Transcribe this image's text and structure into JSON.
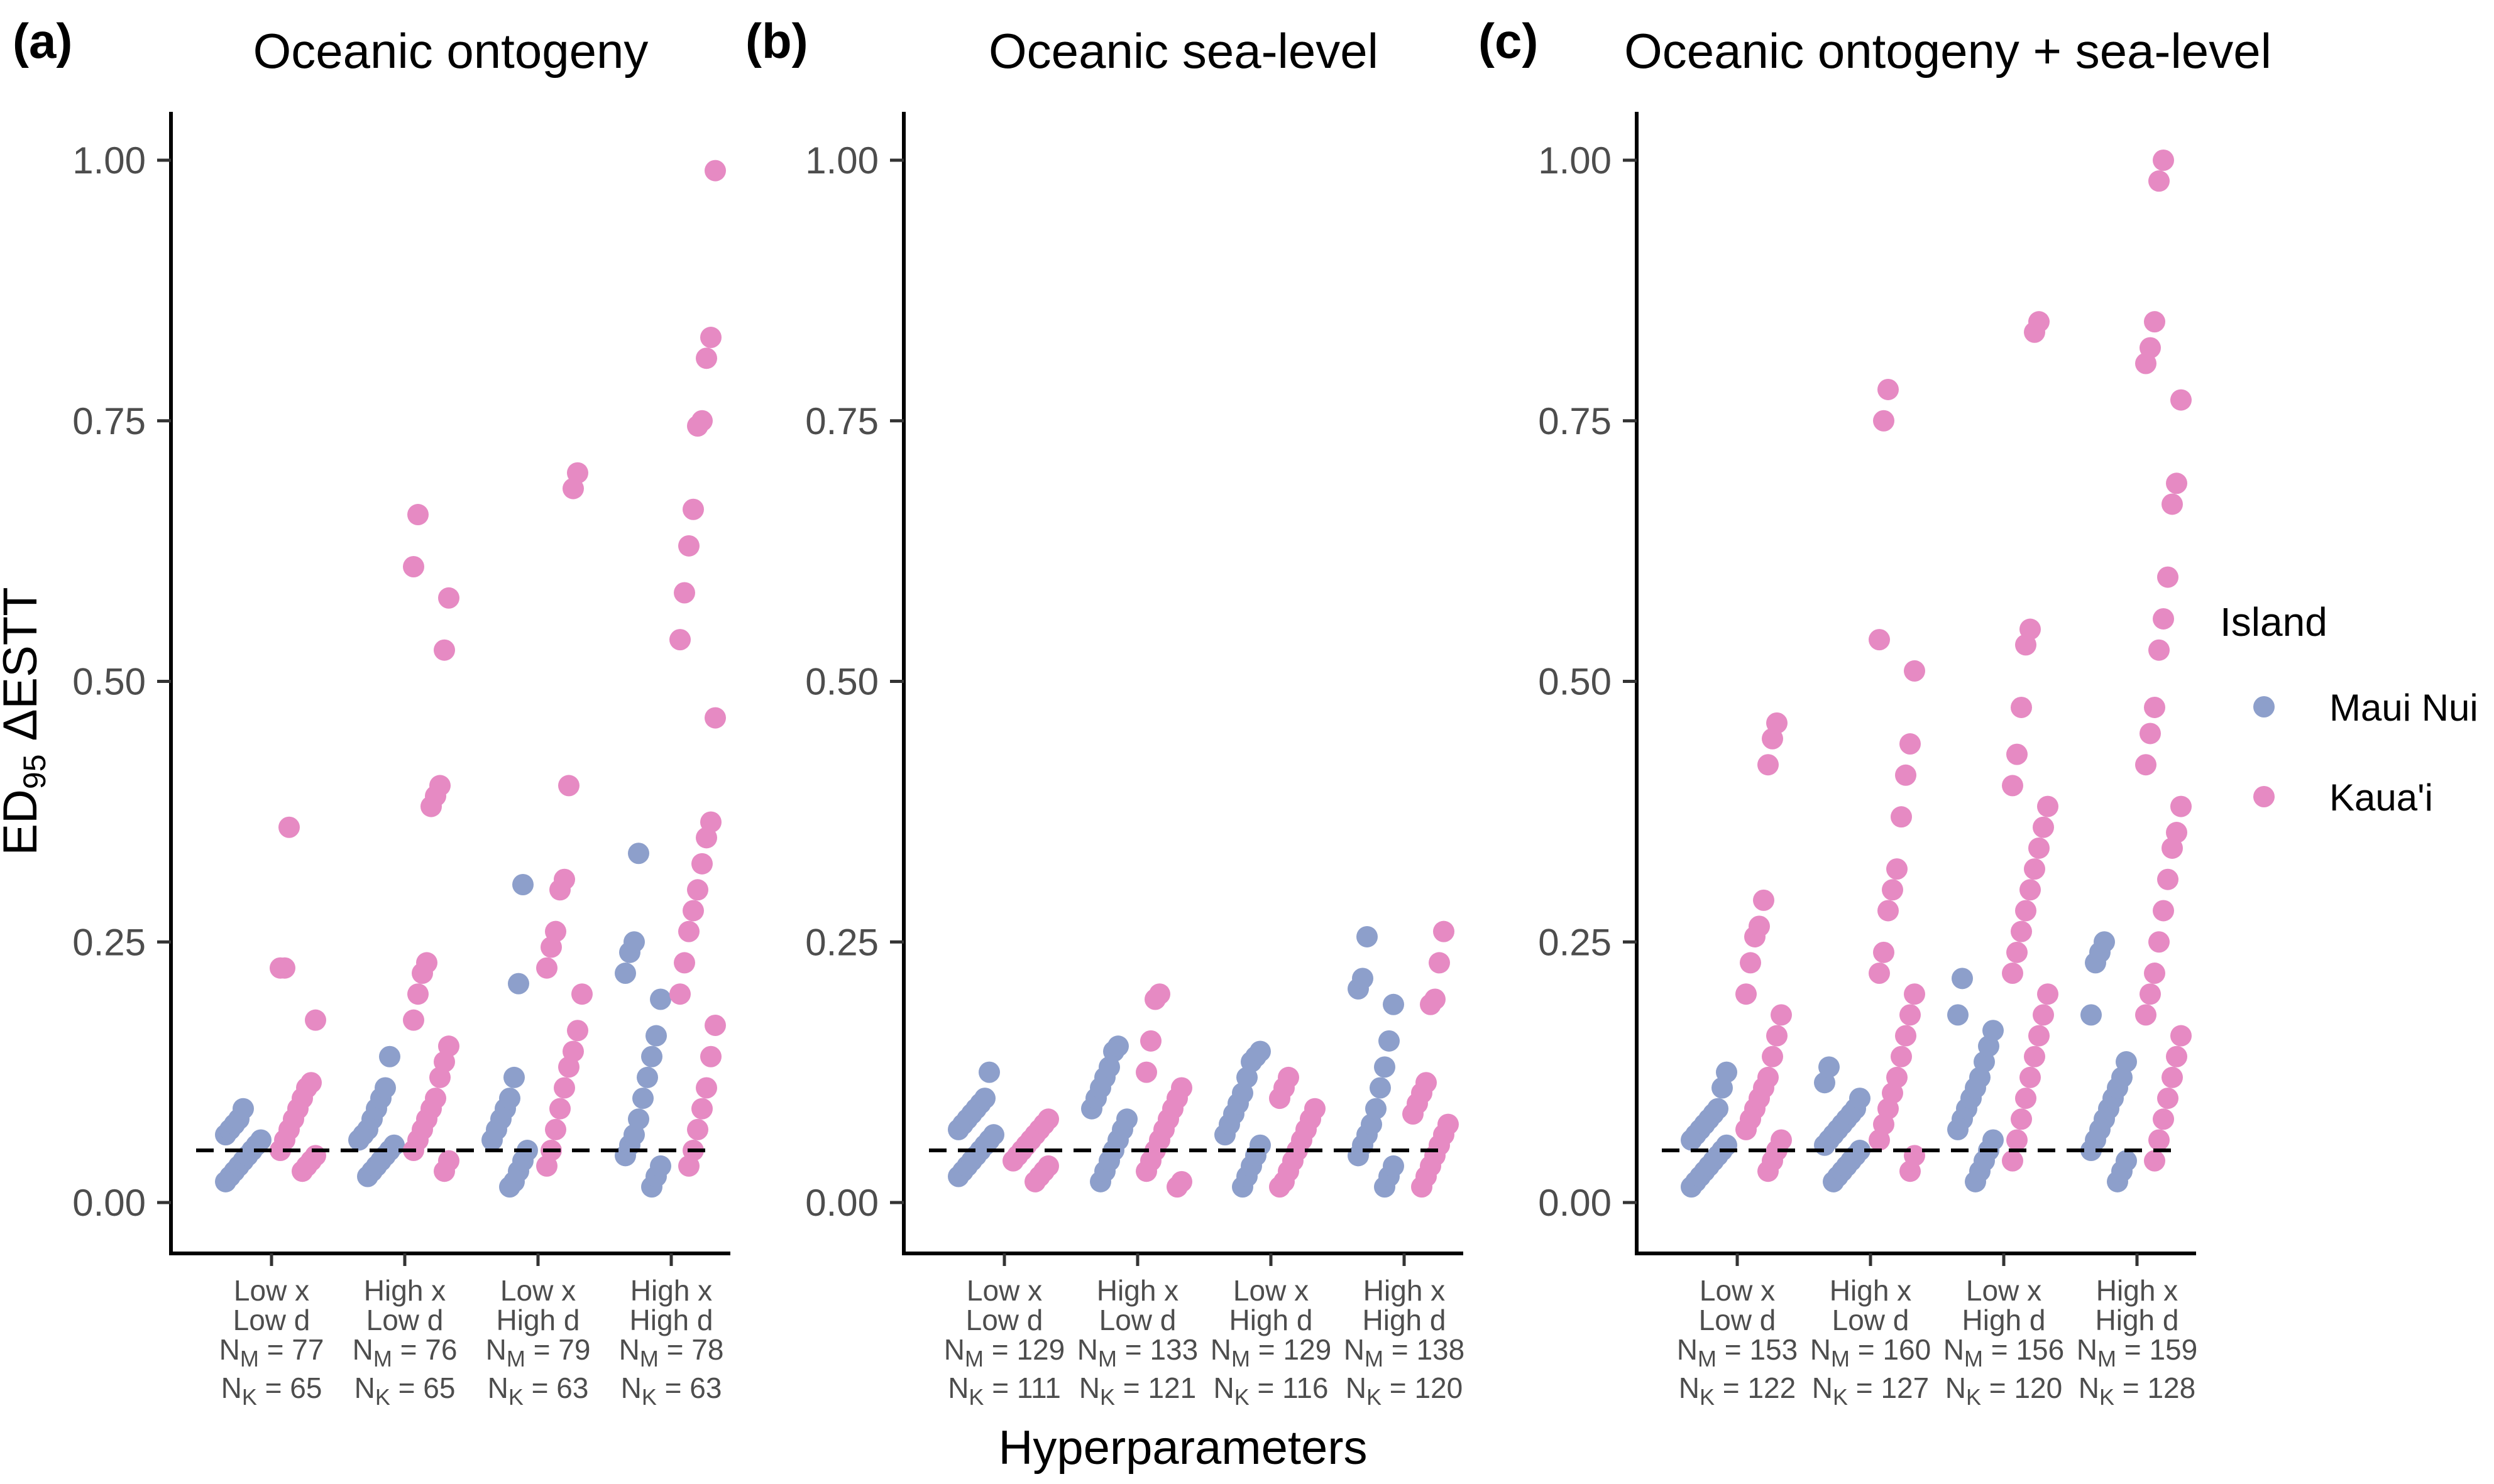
{
  "figure": {
    "xlabel": "Hyperparameters",
    "ylabel": "ED",
    "ylabel_sub": "95",
    "ylabel_rest": " ΔESTT",
    "reference_line": 0.05,
    "legend": {
      "title": "Island",
      "items": [
        {
          "name": "Maui Nui",
          "color": "#8d9fcb"
        },
        {
          "name": "Kaua'i",
          "color": "#e68ac3"
        }
      ]
    }
  },
  "chart_data": [
    {
      "type": "scatter",
      "panel_label": "(a)",
      "title": "Oceanic ontogeny",
      "ylim": [
        0,
        1
      ],
      "yticks": [
        "0.00",
        "0.25",
        "0.50",
        "0.75",
        "1.00"
      ],
      "categories": [
        {
          "line1": "Low x",
          "line2": "Low d",
          "nm_label": "N",
          "nm_sub": "M",
          "nm_val": " = 77",
          "nk_label": "N",
          "nk_sub": "K",
          "nk_val": " = 65"
        },
        {
          "line1": "High x",
          "line2": "Low d",
          "nm_label": "N",
          "nm_sub": "M",
          "nm_val": " = 76",
          "nk_label": "N",
          "nk_sub": "K",
          "nk_val": " = 65"
        },
        {
          "line1": "Low x",
          "line2": "High d",
          "nm_label": "N",
          "nm_sub": "M",
          "nm_val": " = 79",
          "nk_label": "N",
          "nk_sub": "K",
          "nk_val": " = 63"
        },
        {
          "line1": "High x",
          "line2": "High d",
          "nm_label": "N",
          "nm_sub": "M",
          "nm_val": " = 78",
          "nk_label": "N",
          "nk_sub": "K",
          "nk_val": " = 63"
        }
      ],
      "series": [
        {
          "name": "Maui Nui",
          "groups": [
            [
              0.02,
              0.025,
              0.03,
              0.035,
              0.04,
              0.045,
              0.05,
              0.055,
              0.06,
              0.065,
              0.07,
              0.075,
              0.08,
              0.09
            ],
            [
              0.025,
              0.03,
              0.035,
              0.04,
              0.045,
              0.05,
              0.055,
              0.06,
              0.065,
              0.07,
              0.08,
              0.09,
              0.1,
              0.11,
              0.14
            ],
            [
              0.015,
              0.02,
              0.03,
              0.04,
              0.05,
              0.06,
              0.07,
              0.08,
              0.09,
              0.1,
              0.12,
              0.21,
              0.305
            ],
            [
              0.015,
              0.025,
              0.035,
              0.045,
              0.055,
              0.065,
              0.08,
              0.1,
              0.12,
              0.14,
              0.16,
              0.195,
              0.22,
              0.24,
              0.25,
              0.335
            ]
          ]
        },
        {
          "name": "Kaua'i",
          "groups": [
            [
              0.03,
              0.035,
              0.04,
              0.045,
              0.05,
              0.06,
              0.07,
              0.08,
              0.09,
              0.1,
              0.11,
              0.115,
              0.175,
              0.225,
              0.225,
              0.36
            ],
            [
              0.03,
              0.04,
              0.05,
              0.06,
              0.07,
              0.08,
              0.09,
              0.1,
              0.12,
              0.135,
              0.15,
              0.175,
              0.2,
              0.22,
              0.23,
              0.38,
              0.39,
              0.4,
              0.53,
              0.58,
              0.61,
              0.66
            ],
            [
              0.035,
              0.05,
              0.07,
              0.09,
              0.11,
              0.13,
              0.145,
              0.165,
              0.2,
              0.225,
              0.245,
              0.26,
              0.3,
              0.31,
              0.4,
              0.685,
              0.7
            ],
            [
              0.035,
              0.05,
              0.07,
              0.09,
              0.11,
              0.14,
              0.17,
              0.2,
              0.23,
              0.26,
              0.28,
              0.3,
              0.325,
              0.35,
              0.365,
              0.465,
              0.54,
              0.585,
              0.63,
              0.665,
              0.745,
              0.75,
              0.81,
              0.83,
              0.99
            ]
          ]
        }
      ]
    },
    {
      "type": "scatter",
      "panel_label": "(b)",
      "title": "Oceanic sea-level",
      "ylim": [
        0,
        1
      ],
      "yticks": [
        "0.00",
        "0.25",
        "0.50",
        "0.75",
        "1.00"
      ],
      "categories": [
        {
          "line1": "Low x",
          "line2": "Low d",
          "nm_label": "N",
          "nm_sub": "M",
          "nm_val": " = 129",
          "nk_label": "N",
          "nk_sub": "K",
          "nk_val": " = 111"
        },
        {
          "line1": "High x",
          "line2": "Low d",
          "nm_label": "N",
          "nm_sub": "M",
          "nm_val": " = 133",
          "nk_label": "N",
          "nk_sub": "K",
          "nk_val": " = 121"
        },
        {
          "line1": "Low x",
          "line2": "High d",
          "nm_label": "N",
          "nm_sub": "M",
          "nm_val": " = 129",
          "nk_label": "N",
          "nk_sub": "K",
          "nk_val": " = 116"
        },
        {
          "line1": "High x",
          "line2": "High d",
          "nm_label": "N",
          "nm_sub": "M",
          "nm_val": " = 138",
          "nk_label": "N",
          "nk_sub": "K",
          "nk_val": " = 120"
        }
      ],
      "series": [
        {
          "name": "Maui Nui",
          "groups": [
            [
              0.025,
              0.03,
              0.035,
              0.04,
              0.045,
              0.05,
              0.055,
              0.06,
              0.065,
              0.07,
              0.075,
              0.08,
              0.085,
              0.09,
              0.095,
              0.1,
              0.125
            ],
            [
              0.02,
              0.03,
              0.04,
              0.05,
              0.06,
              0.07,
              0.08,
              0.09,
              0.1,
              0.11,
              0.12,
              0.13,
              0.145,
              0.15
            ],
            [
              0.015,
              0.025,
              0.035,
              0.045,
              0.055,
              0.065,
              0.075,
              0.085,
              0.095,
              0.105,
              0.12,
              0.135,
              0.14,
              0.145
            ],
            [
              0.015,
              0.025,
              0.035,
              0.045,
              0.055,
              0.065,
              0.075,
              0.09,
              0.11,
              0.13,
              0.155,
              0.19,
              0.205,
              0.215,
              0.255
            ]
          ]
        },
        {
          "name": "Kaua'i",
          "groups": [
            [
              0.02,
              0.025,
              0.03,
              0.035,
              0.04,
              0.045,
              0.05,
              0.055,
              0.06,
              0.065,
              0.07,
              0.075,
              0.08
            ],
            [
              0.015,
              0.02,
              0.03,
              0.04,
              0.05,
              0.06,
              0.07,
              0.08,
              0.09,
              0.1,
              0.11,
              0.125,
              0.155,
              0.195,
              0.2
            ],
            [
              0.015,
              0.02,
              0.03,
              0.04,
              0.05,
              0.06,
              0.07,
              0.08,
              0.09,
              0.1,
              0.11,
              0.12
            ],
            [
              0.015,
              0.025,
              0.035,
              0.045,
              0.055,
              0.065,
              0.075,
              0.085,
              0.095,
              0.105,
              0.115,
              0.19,
              0.195,
              0.23,
              0.26
            ]
          ]
        }
      ]
    },
    {
      "type": "scatter",
      "panel_label": "(c)",
      "title": "Oceanic ontogeny + sea-level",
      "ylim": [
        0,
        1
      ],
      "yticks": [
        "0.00",
        "0.25",
        "0.50",
        "0.75",
        "1.00"
      ],
      "categories": [
        {
          "line1": "Low x",
          "line2": "Low d",
          "nm_label": "N",
          "nm_sub": "M",
          "nm_val": " = 153",
          "nk_label": "N",
          "nk_sub": "K",
          "nk_val": " = 122"
        },
        {
          "line1": "High x",
          "line2": "Low d",
          "nm_label": "N",
          "nm_sub": "M",
          "nm_val": " = 160",
          "nk_label": "N",
          "nk_sub": "K",
          "nk_val": " = 127"
        },
        {
          "line1": "Low x",
          "line2": "High d",
          "nm_label": "N",
          "nm_sub": "M",
          "nm_val": " = 156",
          "nk_label": "N",
          "nk_sub": "K",
          "nk_val": " = 120"
        },
        {
          "line1": "High x",
          "line2": "High d",
          "nm_label": "N",
          "nm_sub": "M",
          "nm_val": " = 159",
          "nk_label": "N",
          "nk_sub": "K",
          "nk_val": " = 128"
        }
      ],
      "series": [
        {
          "name": "Maui Nui",
          "groups": [
            [
              0.015,
              0.02,
              0.025,
              0.03,
              0.035,
              0.04,
              0.045,
              0.05,
              0.055,
              0.06,
              0.065,
              0.07,
              0.075,
              0.08,
              0.085,
              0.09,
              0.11,
              0.125
            ],
            [
              0.02,
              0.025,
              0.03,
              0.035,
              0.04,
              0.045,
              0.05,
              0.055,
              0.06,
              0.065,
              0.07,
              0.075,
              0.08,
              0.085,
              0.09,
              0.1,
              0.115,
              0.13
            ],
            [
              0.02,
              0.03,
              0.04,
              0.05,
              0.06,
              0.07,
              0.08,
              0.09,
              0.1,
              0.11,
              0.12,
              0.135,
              0.15,
              0.165,
              0.18,
              0.215
            ],
            [
              0.02,
              0.03,
              0.04,
              0.05,
              0.06,
              0.07,
              0.08,
              0.09,
              0.1,
              0.11,
              0.12,
              0.135,
              0.18,
              0.23,
              0.24,
              0.25
            ]
          ]
        },
        {
          "name": "Kaua'i",
          "groups": [
            [
              0.03,
              0.04,
              0.05,
              0.06,
              0.07,
              0.08,
              0.09,
              0.1,
              0.11,
              0.12,
              0.14,
              0.16,
              0.18,
              0.2,
              0.23,
              0.255,
              0.265,
              0.29,
              0.42,
              0.445,
              0.46
            ],
            [
              0.03,
              0.045,
              0.06,
              0.075,
              0.09,
              0.105,
              0.12,
              0.14,
              0.16,
              0.18,
              0.2,
              0.22,
              0.24,
              0.28,
              0.3,
              0.32,
              0.37,
              0.41,
              0.44,
              0.51,
              0.54,
              0.75,
              0.78
            ],
            [
              0.04,
              0.06,
              0.08,
              0.1,
              0.12,
              0.14,
              0.16,
              0.18,
              0.2,
              0.22,
              0.24,
              0.26,
              0.28,
              0.3,
              0.32,
              0.34,
              0.36,
              0.38,
              0.4,
              0.43,
              0.475,
              0.535,
              0.55,
              0.835,
              0.845
            ],
            [
              0.04,
              0.06,
              0.08,
              0.1,
              0.12,
              0.14,
              0.16,
              0.18,
              0.2,
              0.22,
              0.25,
              0.28,
              0.31,
              0.34,
              0.355,
              0.38,
              0.42,
              0.45,
              0.475,
              0.53,
              0.56,
              0.6,
              0.67,
              0.69,
              0.77,
              0.805,
              0.82,
              0.845,
              0.98,
              1.0
            ]
          ]
        }
      ]
    }
  ]
}
